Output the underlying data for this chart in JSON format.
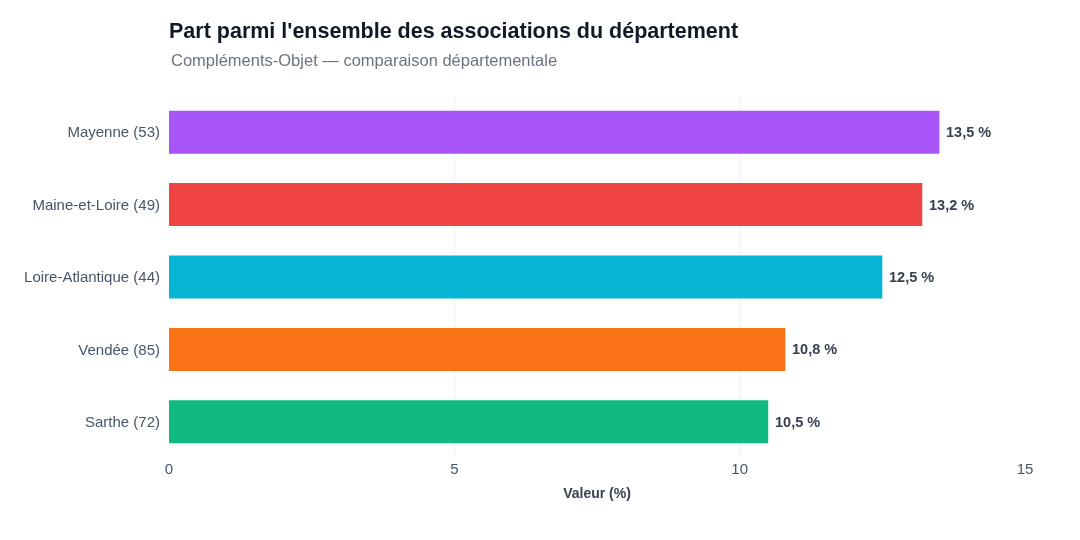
{
  "chart_data": {
    "type": "bar",
    "orientation": "horizontal",
    "title": "Part parmi l'ensemble des associations du département",
    "subtitle": "Compléments-Objet — comparaison départementale",
    "xlabel": "Valeur (%)",
    "categories": [
      "Mayenne (53)",
      "Maine-et-Loire (49)",
      "Loire-Atlantique (44)",
      "Vendée (85)",
      "Sarthe (72)"
    ],
    "values": [
      13.5,
      13.2,
      12.5,
      10.8,
      10.5
    ],
    "colors": [
      "#a855f7",
      "#ef4444",
      "#06b6d4",
      "#f97316",
      "#10b981"
    ],
    "value_labels": [
      "13,5 %",
      "13,2 %",
      "12,5 %",
      "10,8 %",
      "10,5 %"
    ],
    "xlim": [
      0,
      15
    ],
    "xticks": [
      0,
      5,
      10,
      15
    ],
    "grid": "x"
  }
}
